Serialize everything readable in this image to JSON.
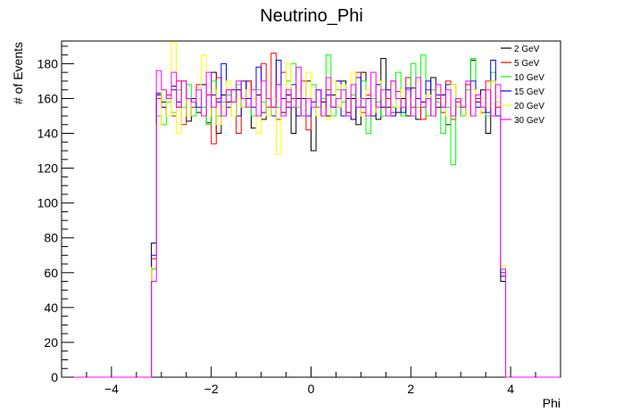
{
  "chart_data": {
    "type": "line",
    "title": "Neutrino_Phi",
    "xlabel": "Phi",
    "ylabel": "# of Events",
    "xlim": [
      -5,
      5
    ],
    "ylim": [
      0,
      193
    ],
    "x_ticks": [
      -4,
      -2,
      0,
      2,
      4
    ],
    "y_ticks": [
      0,
      20,
      40,
      60,
      80,
      100,
      120,
      140,
      160,
      180
    ],
    "x_tick_labels": [
      "−4",
      "−2",
      "0",
      "2",
      "4"
    ],
    "y_tick_labels": [
      "0",
      "20",
      "40",
      "60",
      "80",
      "100",
      "120",
      "140",
      "160",
      "180"
    ],
    "grid": false,
    "legend_position": "top-right",
    "bins": {
      "count": 100,
      "min": -5,
      "max": 5
    },
    "series": [
      {
        "name": "2 GeV",
        "color": "#000000",
        "values": [
          0,
          0,
          0,
          0,
          0,
          0,
          0,
          0,
          0,
          0,
          0,
          0,
          0,
          0,
          0,
          0,
          0,
          0,
          77,
          163,
          158,
          150,
          167,
          155,
          170,
          147,
          160,
          152,
          168,
          146,
          175,
          140,
          162,
          158,
          150,
          165,
          155,
          170,
          143,
          162,
          148,
          160,
          155,
          168,
          152,
          162,
          140,
          160,
          150,
          170,
          130,
          165,
          158,
          150,
          162,
          155,
          170,
          152,
          160,
          145,
          175,
          150,
          160,
          148,
          183,
          155,
          170,
          152,
          160,
          150,
          166,
          148,
          158,
          150,
          172,
          155,
          162,
          145,
          168,
          155,
          160,
          150,
          182,
          158,
          165,
          140,
          170,
          150,
          55,
          0,
          0,
          0,
          0,
          0,
          0,
          0,
          0,
          0,
          0,
          0
        ]
      },
      {
        "name": "5 GeV",
        "color": "#ff0000",
        "values": [
          0,
          0,
          0,
          0,
          0,
          0,
          0,
          0,
          0,
          0,
          0,
          0,
          0,
          0,
          0,
          0,
          0,
          0,
          68,
          160,
          155,
          162,
          150,
          170,
          145,
          160,
          155,
          168,
          150,
          162,
          134,
          172,
          150,
          165,
          158,
          140,
          155,
          170,
          160,
          150,
          180,
          155,
          186,
          148,
          175,
          158,
          160,
          150,
          170,
          142,
          160,
          155,
          150,
          165,
          155,
          170,
          150,
          160,
          148,
          175,
          152,
          162,
          150,
          168,
          155,
          160,
          152,
          164,
          150,
          172,
          155,
          160,
          148,
          165,
          150,
          160,
          152,
          170,
          148,
          158,
          150,
          168,
          150,
          160,
          152,
          170,
          150,
          155,
          60,
          0,
          0,
          0,
          0,
          0,
          0,
          0,
          0,
          0,
          0,
          0
        ]
      },
      {
        "name": "10 GeV",
        "color": "#00ff00",
        "values": [
          0,
          0,
          0,
          0,
          0,
          0,
          0,
          0,
          0,
          0,
          0,
          0,
          0,
          0,
          0,
          0,
          0,
          0,
          62,
          150,
          145,
          158,
          152,
          165,
          155,
          168,
          150,
          160,
          155,
          145,
          170,
          150,
          158,
          162,
          150,
          168,
          155,
          160,
          150,
          165,
          158,
          150,
          160,
          155,
          150,
          170,
          180,
          155,
          160,
          150,
          168,
          155,
          160,
          185,
          150,
          165,
          158,
          150,
          162,
          155,
          170,
          140,
          160,
          158,
          150,
          165,
          155,
          175,
          150,
          160,
          180,
          155,
          185,
          150,
          165,
          158,
          140,
          155,
          122,
          160,
          150,
          165,
          183,
          155,
          160,
          150,
          175,
          158,
          62,
          0,
          0,
          0,
          0,
          0,
          0,
          0,
          0,
          0,
          0,
          0
        ]
      },
      {
        "name": "15 GeV",
        "color": "#0000ff",
        "values": [
          0,
          0,
          0,
          0,
          0,
          0,
          0,
          0,
          0,
          0,
          0,
          0,
          0,
          0,
          0,
          0,
          0,
          0,
          70,
          162,
          155,
          150,
          165,
          158,
          170,
          150,
          160,
          155,
          168,
          150,
          162,
          158,
          180,
          155,
          165,
          150,
          170,
          160,
          155,
          178,
          152,
          160,
          150,
          182,
          160,
          155,
          168,
          150,
          160,
          150,
          158,
          165,
          150,
          162,
          155,
          170,
          150,
          160,
          148,
          172,
          155,
          160,
          150,
          168,
          155,
          165,
          150,
          160,
          152,
          166,
          150,
          160,
          155,
          170,
          150,
          162,
          155,
          168,
          150,
          160,
          155,
          150,
          170,
          155,
          160,
          152,
          182,
          150,
          58,
          0,
          0,
          0,
          0,
          0,
          0,
          0,
          0,
          0,
          0,
          0
        ]
      },
      {
        "name": "20 GeV",
        "color": "#ffff00",
        "values": [
          0,
          0,
          0,
          0,
          0,
          0,
          0,
          0,
          0,
          0,
          0,
          0,
          0,
          0,
          0,
          0,
          0,
          0,
          63,
          145,
          165,
          150,
          192,
          140,
          170,
          150,
          158,
          160,
          185,
          150,
          165,
          145,
          155,
          170,
          150,
          160,
          155,
          165,
          160,
          140,
          170,
          150,
          160,
          128,
          150,
          180,
          155,
          165,
          150,
          175,
          160,
          150,
          155,
          148,
          170,
          155,
          168,
          150,
          175,
          160,
          150,
          165,
          152,
          170,
          160,
          150,
          168,
          155,
          165,
          160,
          150,
          170,
          155,
          162,
          150,
          165,
          158,
          150,
          168,
          155,
          160,
          150,
          165,
          150,
          160,
          155,
          170,
          158,
          64,
          0,
          0,
          0,
          0,
          0,
          0,
          0,
          0,
          0,
          0,
          0
        ]
      },
      {
        "name": "30 GeV",
        "color": "#ff00ff",
        "values": [
          0,
          0,
          0,
          0,
          0,
          0,
          0,
          0,
          0,
          0,
          0,
          0,
          0,
          0,
          0,
          0,
          0,
          0,
          55,
          176,
          165,
          160,
          175,
          155,
          170,
          160,
          158,
          165,
          150,
          175,
          155,
          160,
          150,
          165,
          158,
          170,
          160,
          155,
          165,
          150,
          170,
          160,
          155,
          168,
          150,
          165,
          155,
          178,
          150,
          160,
          155,
          165,
          150,
          172,
          155,
          160,
          165,
          150,
          168,
          155,
          160,
          150,
          175,
          155,
          165,
          150,
          170,
          160,
          155,
          165,
          150,
          172,
          155,
          160,
          150,
          168,
          155,
          165,
          150,
          160,
          155,
          170,
          150,
          162,
          155,
          165,
          150,
          168,
          62,
          0,
          0,
          0,
          0,
          0,
          0,
          0,
          0,
          0,
          0,
          0
        ]
      }
    ]
  }
}
